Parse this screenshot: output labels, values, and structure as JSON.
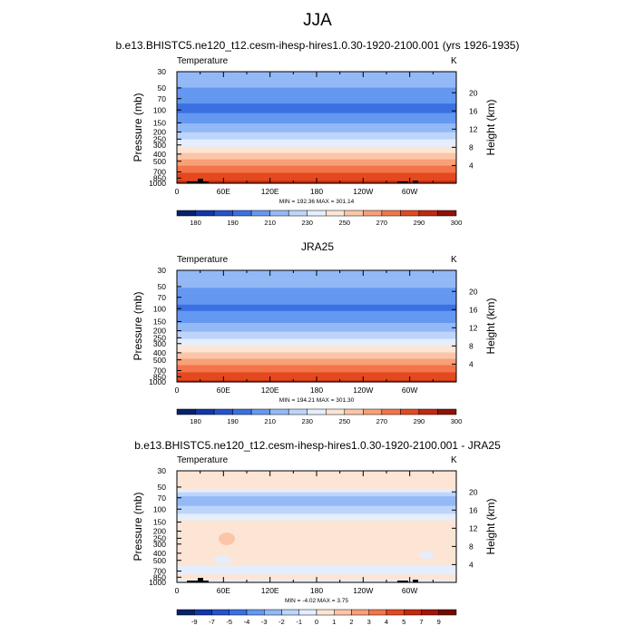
{
  "page_title": "JJA",
  "chart_data": [
    {
      "type": "heatmap",
      "title": "b.e13.BHISTC5.ne120_t12.cesm-ihesp-hires1.0.30-1920-2100.001 (yrs 1926-1935)",
      "left_label": "Temperature",
      "units": "K",
      "ylabel": "Pressure (mb)",
      "ylabel_right": "Height (km)",
      "y_ticks": [
        "30",
        "50",
        "70",
        "100",
        "150",
        "200",
        "250",
        "300",
        "400",
        "500",
        "700",
        "850",
        "1000"
      ],
      "y_ticks_right": [
        "20",
        "16",
        "12",
        "8",
        "4"
      ],
      "x_ticks": [
        "0",
        "60E",
        "120E",
        "180",
        "120W",
        "60W"
      ],
      "stats": "MIN = 192.36   MAX = 301.14",
      "colorbar_labels": [
        "180",
        "190",
        "210",
        "230",
        "250",
        "270",
        "290",
        "300"
      ],
      "profile": [
        {
          "p": 30,
          "v": 216
        },
        {
          "p": 50,
          "v": 210
        },
        {
          "p": 70,
          "v": 202
        },
        {
          "p": 100,
          "v": 197
        },
        {
          "p": 150,
          "v": 209
        },
        {
          "p": 200,
          "v": 220
        },
        {
          "p": 250,
          "v": 229
        },
        {
          "p": 300,
          "v": 238
        },
        {
          "p": 400,
          "v": 252
        },
        {
          "p": 500,
          "v": 263
        },
        {
          "p": 700,
          "v": 279
        },
        {
          "p": 850,
          "v": 287
        },
        {
          "p": 1000,
          "v": 293
        }
      ]
    },
    {
      "type": "heatmap",
      "title": "JRA25",
      "left_label": "Temperature",
      "units": "K",
      "ylabel": "Pressure (mb)",
      "ylabel_right": "Height (km)",
      "y_ticks": [
        "30",
        "50",
        "70",
        "100",
        "150",
        "200",
        "250",
        "300",
        "400",
        "500",
        "700",
        "850",
        "1000"
      ],
      "y_ticks_right": [
        "20",
        "16",
        "12",
        "8",
        "4"
      ],
      "x_ticks": [
        "0",
        "60E",
        "120E",
        "180",
        "120W",
        "60W"
      ],
      "stats": "MIN = 194.21   MAX = 301.30",
      "colorbar_labels": [
        "180",
        "190",
        "210",
        "230",
        "250",
        "270",
        "290",
        "300"
      ],
      "profile": [
        {
          "p": 30,
          "v": 217
        },
        {
          "p": 50,
          "v": 211
        },
        {
          "p": 70,
          "v": 204
        },
        {
          "p": 100,
          "v": 198
        },
        {
          "p": 150,
          "v": 208
        },
        {
          "p": 200,
          "v": 219
        },
        {
          "p": 250,
          "v": 228
        },
        {
          "p": 300,
          "v": 237
        },
        {
          "p": 400,
          "v": 251
        },
        {
          "p": 500,
          "v": 262
        },
        {
          "p": 700,
          "v": 278
        },
        {
          "p": 850,
          "v": 286
        },
        {
          "p": 1000,
          "v": 292
        }
      ]
    },
    {
      "type": "heatmap",
      "title": "b.e13.BHISTC5.ne120_t12.cesm-ihesp-hires1.0.30-1920-2100.001 - JRA25",
      "left_label": "Temperature",
      "units": "K",
      "ylabel": "Pressure (mb)",
      "ylabel_right": "Height (km)",
      "y_ticks": [
        "30",
        "50",
        "70",
        "100",
        "150",
        "200",
        "250",
        "300",
        "400",
        "500",
        "700",
        "850",
        "1000"
      ],
      "y_ticks_right": [
        "20",
        "16",
        "12",
        "8",
        "4"
      ],
      "x_ticks": [
        "0",
        "60E",
        "120E",
        "180",
        "120W",
        "60W"
      ],
      "stats": "MIN =  -4.02   MAX =   3.75",
      "colorbar_labels": [
        "-9",
        "-7",
        "-5",
        "-4",
        "-3",
        "-2",
        "-1",
        "0",
        "1",
        "2",
        "3",
        "4",
        "5",
        "7",
        "9"
      ],
      "profile": [
        {
          "p": 30,
          "v": 0.8
        },
        {
          "p": 50,
          "v": 0.5
        },
        {
          "p": 70,
          "v": -2.5
        },
        {
          "p": 100,
          "v": -1.8
        },
        {
          "p": 150,
          "v": 0.3
        },
        {
          "p": 200,
          "v": 0.5
        },
        {
          "p": 250,
          "v": 0.5
        },
        {
          "p": 300,
          "v": 0.5
        },
        {
          "p": 400,
          "v": 0.5
        },
        {
          "p": 500,
          "v": 0.5
        },
        {
          "p": 700,
          "v": -0.5
        },
        {
          "p": 850,
          "v": 0.5
        },
        {
          "p": 1000,
          "v": -0.5
        }
      ]
    }
  ],
  "colors": {
    "temperature_scale": [
      "#08216b",
      "#1137a8",
      "#2653cc",
      "#3a71e2",
      "#6598f0",
      "#93b9f6",
      "#bdd5fb",
      "#e4eefe",
      "#fde5d5",
      "#fbc6a8",
      "#f8a078",
      "#f27548",
      "#e4491f",
      "#c2290d",
      "#8f1206"
    ],
    "difference_scale": [
      "#08216b",
      "#1137a8",
      "#2653cc",
      "#3a71e2",
      "#6598f0",
      "#93b9f6",
      "#bdd5fb",
      "#e4eefe",
      "#fde5d5",
      "#fbc6a8",
      "#f8a078",
      "#f27548",
      "#e4491f",
      "#c2290d",
      "#a01607",
      "#6f0d03"
    ]
  }
}
